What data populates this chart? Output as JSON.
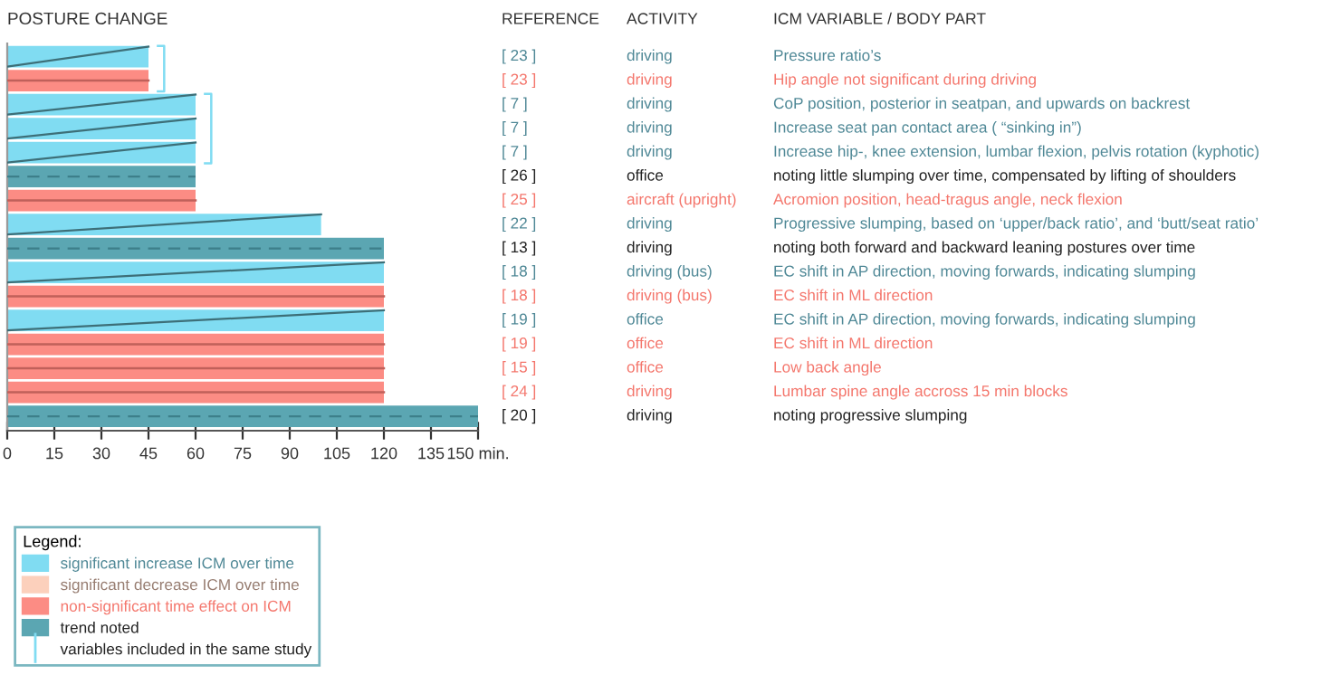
{
  "chart_data": {
    "type": "bar",
    "orientation": "horizontal",
    "title": "POSTURE CHANGE",
    "categories": [
      "[ 23 ]",
      "[ 23 ]",
      "[ 7 ]",
      "[ 7 ]",
      "[ 7 ]",
      "[ 26 ]",
      "[ 25 ]",
      "[ 22 ]",
      "[ 13 ]",
      "[ 18 ]",
      "[ 18 ]",
      "[ 19 ]",
      "[ 19 ]",
      "[ 15 ]",
      "[ 24 ]",
      "[ 20 ]"
    ],
    "series": [
      {
        "name": "significant increase ICM over time",
        "color": "#80dcf2",
        "values": [
          45,
          null,
          60,
          60,
          60,
          null,
          null,
          100,
          null,
          120,
          null,
          120,
          null,
          null,
          null,
          null
        ]
      },
      {
        "name": "significant decrease ICM over time",
        "color": "#fcd0bc",
        "values": [
          null,
          null,
          null,
          null,
          null,
          null,
          null,
          null,
          null,
          null,
          null,
          null,
          null,
          null,
          null,
          null
        ]
      },
      {
        "name": "non-significant time effect on ICM",
        "color": "#fc8c84",
        "values": [
          null,
          45,
          null,
          null,
          null,
          null,
          60,
          null,
          null,
          null,
          120,
          null,
          120,
          120,
          120,
          null
        ]
      },
      {
        "name": "trend noted",
        "color": "#5ba6b2",
        "values": [
          null,
          null,
          null,
          null,
          null,
          60,
          null,
          null,
          120,
          null,
          null,
          null,
          null,
          null,
          null,
          150
        ]
      }
    ],
    "legend_title": "Legend:",
    "legend": "bottom left",
    "xlim": [
      0,
      150
    ],
    "xticks": [
      0,
      15,
      30,
      45,
      60,
      75,
      90,
      105,
      120,
      135,
      {
        "value": 150,
        "label": "150 min."
      }
    ],
    "annotations": [
      "REFERENCE",
      "ACTIVITY",
      "ICM VARIABLE / BODY PART",
      "variables included in the same study",
      "driving",
      "driving",
      "driving",
      "driving",
      "driving",
      "office",
      "aircraft (upright)",
      "driving",
      "driving",
      "driving (bus)",
      "driving (bus)",
      "office",
      "office",
      "office",
      "driving",
      "driving",
      "Pressure ratio’s",
      "Hip angle not significant during driving",
      "CoP position, posterior in seatpan, and upwards on backrest",
      "Increase seat pan contact area ( “sinking in”)",
      "Increase hip-, knee extension, lumbar flexion, pelvis rotation (kyphotic)",
      "noting little slumping over time, compensated by lifting of shoulders",
      "Acromion position, head-tragus angle, neck flexion",
      "Progressive slumping, based on ‘upper/back ratio’, and ‘butt/seat ratio’",
      "noting both forward and backward leaning postures over time",
      "EC shift in AP direction, moving forwards, indicating slumping",
      "EC shift in ML direction",
      "EC shift in AP direction, moving forwards, indicating slumping",
      "EC shift in ML direction",
      "Low back angle",
      "Lumbar spine angle accross 15 min blocks",
      "noting progressive slumping"
    ]
  }
}
